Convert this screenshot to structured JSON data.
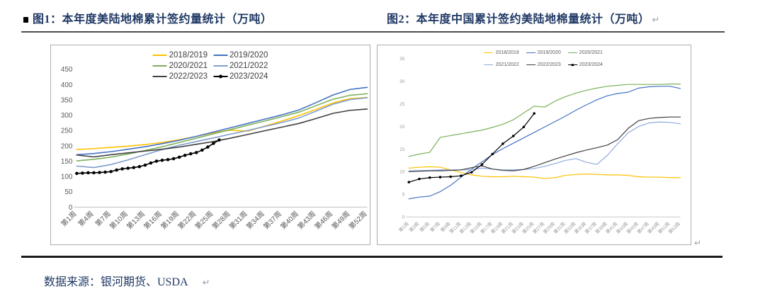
{
  "header": {
    "figure1_title": "图1：本年度美陆地棉累计签约量统计（万吨）",
    "figure2_title": "图2：本年度中国累计签约美陆地棉量统计（万吨）",
    "paragraph_mark": "↵"
  },
  "footer": {
    "source_note": "数据来源：银河期货、USDA",
    "paragraph_mark": "↵"
  },
  "chart_data": [
    {
      "id": "us-upland-cotton-cumulative-sales",
      "type": "line",
      "title": "本年度美陆地棉累计签约量统计（万吨）",
      "xlabel": "",
      "ylabel": "万吨",
      "ylim": [
        0,
        450
      ],
      "yticks": [
        0,
        50,
        100,
        150,
        200,
        250,
        300,
        350,
        400,
        450
      ],
      "x_max_week": 52,
      "grid": false,
      "legend_position": "top",
      "legend_rows": 2,
      "xtick_weeks": [
        1,
        4,
        7,
        10,
        13,
        16,
        19,
        22,
        25,
        28,
        31,
        34,
        37,
        40,
        43,
        46,
        49,
        52
      ],
      "xtick_labels": [
        "第1周",
        "第4周",
        "第7周",
        "第10周",
        "第13周",
        "第16周",
        "第19周",
        "第22周",
        "第25周",
        "第28周",
        "第31周",
        "第34周",
        "第37周",
        "第40周",
        "第43周",
        "第46周",
        "第49周",
        "第52周"
      ],
      "series": [
        {
          "name": "2018/2019",
          "color": "#FFC000",
          "marker": false,
          "x": [
            1,
            4,
            7,
            10,
            13,
            16,
            19,
            22,
            25,
            28,
            31,
            34,
            37,
            40,
            43,
            46,
            49,
            52
          ],
          "values": [
            188,
            191,
            195,
            199,
            204,
            211,
            220,
            231,
            243,
            251,
            248,
            264,
            281,
            299,
            319,
            340,
            354,
            358
          ]
        },
        {
          "name": "2019/2020",
          "color": "#4472C4",
          "marker": false,
          "x": [
            1,
            4,
            7,
            10,
            13,
            16,
            19,
            22,
            25,
            28,
            31,
            34,
            37,
            40,
            43,
            46,
            49,
            52
          ],
          "values": [
            171,
            175,
            181,
            189,
            197,
            207,
            218,
            231,
            245,
            259,
            273,
            287,
            301,
            317,
            341,
            366,
            384,
            391
          ]
        },
        {
          "name": "2020/2021",
          "color": "#7CB159",
          "marker": false,
          "x": [
            1,
            4,
            7,
            10,
            13,
            16,
            19,
            22,
            25,
            28,
            31,
            34,
            37,
            40,
            43,
            46,
            49,
            52
          ],
          "values": [
            151,
            156,
            163,
            173,
            185,
            197,
            211,
            225,
            239,
            253,
            267,
            281,
            295,
            310,
            331,
            352,
            365,
            370
          ]
        },
        {
          "name": "2021/2022",
          "color": "#7F9DCC",
          "marker": false,
          "x": [
            1,
            4,
            7,
            10,
            13,
            16,
            19,
            22,
            25,
            28,
            31,
            34,
            37,
            40,
            43,
            46,
            49,
            52
          ],
          "values": [
            134,
            129,
            139,
            154,
            171,
            188,
            202,
            214,
            226,
            238,
            250,
            263,
            276,
            291,
            313,
            336,
            351,
            357
          ]
        },
        {
          "name": "2022/2023",
          "color": "#404040",
          "marker": false,
          "x": [
            1,
            4,
            7,
            10,
            13,
            16,
            19,
            22,
            25,
            28,
            31,
            34,
            37,
            40,
            43,
            46,
            49,
            52
          ],
          "values": [
            170,
            164,
            171,
            177,
            183,
            189,
            196,
            205,
            214,
            225,
            237,
            249,
            261,
            273,
            289,
            306,
            316,
            320
          ]
        },
        {
          "name": "2023/2024",
          "color": "#000000",
          "marker": true,
          "x": [
            1,
            2,
            3,
            4,
            5,
            6,
            7,
            8,
            9,
            10,
            11,
            12,
            13,
            14,
            15,
            16,
            17,
            18,
            19,
            20,
            21,
            22,
            23,
            24,
            25,
            26
          ],
          "values": [
            110,
            111,
            112,
            112,
            113,
            114,
            116,
            121,
            125,
            127,
            129,
            132,
            137,
            144,
            150,
            153,
            155,
            158,
            163,
            169,
            174,
            178,
            186,
            196,
            208,
            219
          ]
        }
      ]
    },
    {
      "id": "china-cumulative-signed-us-upland-cotton",
      "type": "line",
      "title": "本年度中国累计签约美陆地棉量统计（万吨）",
      "xlabel": "",
      "ylabel": "万吨",
      "ylim": [
        0,
        35
      ],
      "yticks": [
        0,
        5,
        10,
        15,
        20,
        25,
        30,
        35
      ],
      "x_max_week": 53,
      "grid": false,
      "legend_position": "top",
      "legend_rows": 1,
      "xtick_weeks": [
        1,
        3,
        5,
        7,
        9,
        11,
        13,
        15,
        17,
        19,
        21,
        23,
        25,
        27,
        29,
        31,
        33,
        35,
        37,
        39,
        41,
        43,
        45,
        47,
        49,
        51,
        53
      ],
      "xtick_labels": [
        "第1周",
        "第3周",
        "第5周",
        "第7周",
        "第9周",
        "第11周",
        "第13周",
        "第15周",
        "第17周",
        "第19周",
        "第21周",
        "第23周",
        "第25周",
        "第27周",
        "第29周",
        "第31周",
        "第33周",
        "第35周",
        "第37周",
        "第39周",
        "第41周",
        "第43周",
        "第45周",
        "第47周",
        "第49周",
        "第51周",
        "第53周"
      ],
      "series": [
        {
          "name": "2018/2019",
          "color": "#FFC000",
          "marker": false,
          "x": [
            1,
            3,
            5,
            7,
            9,
            11,
            13,
            15,
            17,
            19,
            21,
            23,
            25,
            27,
            29,
            31,
            33,
            35,
            37,
            39,
            41,
            43,
            45,
            47,
            49,
            51,
            53
          ],
          "values": [
            10.8,
            11.0,
            11.1,
            11.0,
            10.4,
            9.8,
            9.3,
            9.0,
            8.9,
            8.9,
            9.0,
            8.9,
            8.8,
            8.5,
            8.7,
            9.2,
            9.4,
            9.5,
            9.4,
            9.3,
            9.3,
            9.2,
            8.9,
            8.8,
            8.8,
            8.7,
            8.7
          ]
        },
        {
          "name": "2019/2020",
          "color": "#4472C4",
          "marker": false,
          "x": [
            1,
            3,
            5,
            7,
            9,
            11,
            13,
            15,
            17,
            19,
            21,
            23,
            25,
            27,
            29,
            31,
            33,
            35,
            37,
            39,
            41,
            43,
            45,
            47,
            49,
            51,
            53
          ],
          "values": [
            4.0,
            4.4,
            4.6,
            5.6,
            7.0,
            8.8,
            10.6,
            12.2,
            13.8,
            15.1,
            16.3,
            17.5,
            18.7,
            19.9,
            21.1,
            22.3,
            23.6,
            24.8,
            25.9,
            26.8,
            27.3,
            27.6,
            28.5,
            28.8,
            28.9,
            28.9,
            28.4
          ]
        },
        {
          "name": "2020/2021",
          "color": "#7CB159",
          "marker": false,
          "x": [
            1,
            3,
            5,
            7,
            9,
            11,
            13,
            15,
            17,
            19,
            21,
            23,
            25,
            27,
            29,
            31,
            33,
            35,
            37,
            39,
            41,
            43,
            45,
            47,
            49,
            51,
            53
          ],
          "values": [
            13.4,
            13.9,
            14.3,
            17.6,
            18.0,
            18.4,
            18.8,
            19.2,
            19.8,
            20.5,
            21.5,
            23.0,
            24.5,
            24.3,
            25.6,
            26.6,
            27.4,
            28.0,
            28.5,
            28.9,
            29.1,
            29.3,
            29.3,
            29.3,
            29.3,
            29.4,
            29.4
          ]
        },
        {
          "name": "2021/2022",
          "color": "#8FAADC",
          "marker": false,
          "x": [
            1,
            3,
            5,
            7,
            9,
            11,
            13,
            15,
            17,
            19,
            21,
            23,
            25,
            27,
            29,
            31,
            33,
            35,
            37,
            39,
            41,
            43,
            45,
            47,
            49,
            51,
            53
          ],
          "values": [
            10.2,
            10.3,
            10.3,
            10.4,
            10.4,
            10.4,
            10.5,
            10.8,
            10.6,
            10.4,
            10.4,
            10.5,
            10.7,
            11.2,
            11.8,
            12.5,
            12.9,
            12.1,
            11.6,
            13.6,
            16.2,
            18.6,
            20.0,
            20.8,
            21.0,
            20.9,
            20.6
          ]
        },
        {
          "name": "2022/2023",
          "color": "#404040",
          "marker": false,
          "x": [
            1,
            3,
            5,
            7,
            9,
            11,
            13,
            15,
            17,
            19,
            21,
            23,
            25,
            27,
            29,
            31,
            33,
            35,
            37,
            39,
            41,
            43,
            45,
            47,
            49,
            51,
            53
          ],
          "values": [
            10.0,
            10.1,
            10.2,
            10.2,
            10.3,
            10.4,
            10.9,
            11.3,
            10.6,
            10.3,
            10.2,
            10.5,
            11.2,
            12.0,
            12.8,
            13.5,
            14.2,
            14.8,
            15.3,
            15.9,
            17.1,
            19.6,
            21.3,
            21.8,
            22.0,
            22.1,
            22.1
          ]
        },
        {
          "name": "2023/2024",
          "color": "#000000",
          "marker": true,
          "x": [
            1,
            3,
            5,
            7,
            9,
            11,
            13,
            15,
            17,
            19,
            21,
            23,
            25
          ],
          "values": [
            7.7,
            8.4,
            8.7,
            8.8,
            8.9,
            9.1,
            9.9,
            11.6,
            13.9,
            16.2,
            17.9,
            19.9,
            22.9
          ]
        }
      ]
    }
  ]
}
